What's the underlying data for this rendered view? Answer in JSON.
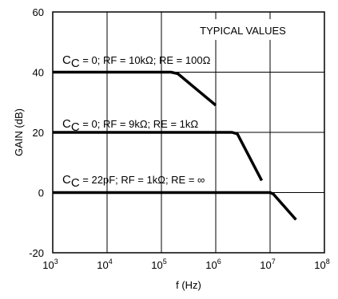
{
  "chart_data": {
    "type": "line",
    "title": "",
    "xlabel": "f (Hz)",
    "ylabel": "GAIN (dB)",
    "xscale": "log",
    "xlim": [
      1000,
      100000000
    ],
    "ylim": [
      -20,
      60
    ],
    "grid": true,
    "x_ticks": [
      {
        "base": "10",
        "exp": "3"
      },
      {
        "base": "10",
        "exp": "4"
      },
      {
        "base": "10",
        "exp": "5"
      },
      {
        "base": "10",
        "exp": "6"
      },
      {
        "base": "10",
        "exp": "7"
      },
      {
        "base": "10",
        "exp": "8"
      }
    ],
    "y_ticks": [
      "-20",
      "0",
      "20",
      "40",
      "60"
    ],
    "y_tick_values": [
      -20,
      0,
      20,
      40,
      60
    ],
    "box_label": "TYPICAL VALUES",
    "series": [
      {
        "x": [
          1000,
          150000,
          200000,
          1000000
        ],
        "y": [
          40,
          40,
          39.5,
          29
        ],
        "label_parts": [
          "C",
          "C",
          " = 0; RF = 10kΩ; RE = 100Ω"
        ]
      },
      {
        "x": [
          1000,
          2000000,
          2500000,
          7000000
        ],
        "y": [
          20,
          20,
          19.5,
          4
        ],
        "label_parts": [
          "C",
          "C",
          " = 0; RF = 9kΩ; RE = 1kΩ"
        ]
      },
      {
        "x": [
          1000,
          10000000,
          11500000,
          30000000
        ],
        "y": [
          0,
          0,
          -0.5,
          -9
        ],
        "label_parts": [
          "C",
          "C",
          " = 22pF; RF = 1kΩ; RE = ∞"
        ]
      }
    ]
  }
}
